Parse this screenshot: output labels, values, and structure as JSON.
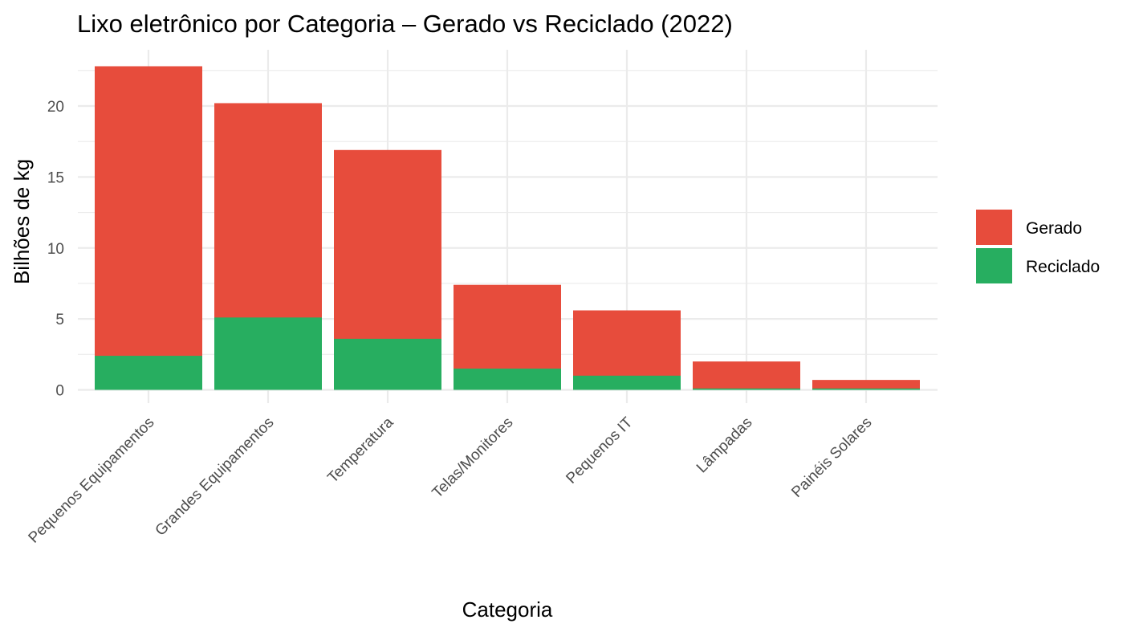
{
  "chart_data": {
    "type": "bar",
    "stacked": false,
    "overlay": true,
    "title": "Lixo eletrônico por Categoria – Gerado vs Reciclado (2022)",
    "xlabel": "Categoria",
    "ylabel": "Bilhões de kg",
    "categories": [
      "Pequenos Equipamentos",
      "Grandes Equipamentos",
      "Temperatura",
      "Telas/Monitores",
      "Pequenos IT",
      "Lâmpadas",
      "Painéis Solares"
    ],
    "series": [
      {
        "name": "Gerado",
        "color": "#e74c3c",
        "values": [
          22.8,
          20.2,
          16.9,
          7.4,
          5.6,
          2.0,
          0.7
        ]
      },
      {
        "name": "Reciclado",
        "color": "#27ae60",
        "values": [
          2.4,
          5.1,
          3.6,
          1.5,
          1.0,
          0.1,
          0.1
        ]
      }
    ],
    "yticks": [
      0,
      5,
      10,
      15,
      20
    ],
    "ylim": [
      0,
      23.9
    ],
    "grid": true,
    "legend_position": "right",
    "x_tick_rotation": 45
  },
  "legend": {
    "items": [
      {
        "label": "Gerado",
        "color": "#e74c3c"
      },
      {
        "label": "Reciclado",
        "color": "#27ae60"
      }
    ]
  }
}
